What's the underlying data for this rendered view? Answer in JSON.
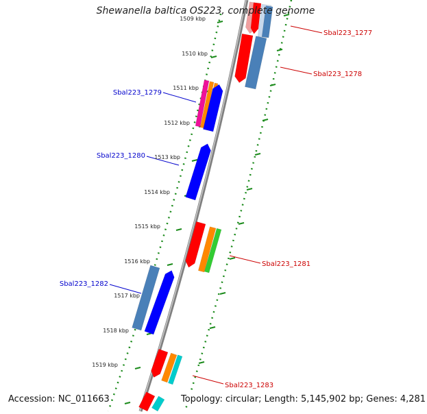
{
  "title": "Shewanella baltica OS223, complete genome",
  "footer": {
    "accession": "Accession: NC_011663",
    "topology": "Topology: circular; Length: 5,145,902 bp; Genes: 4,281"
  },
  "colors": {
    "backbone": "#808080",
    "tick_track": "#1a8a1a",
    "label_left": "#0000cc",
    "label_right": "#cc0000",
    "red": "#ff0000",
    "blue": "#0000ff",
    "steelblue": "#4a80b8",
    "orange": "#ff8800",
    "green": "#33cc33",
    "cyan": "#00cccc",
    "magenta": "#ee1199"
  },
  "kbp_labels": [
    "1509 kbp",
    "1510 kbp",
    "1511 kbp",
    "1512 kbp",
    "1513 kbp",
    "1514 kbp",
    "1515 kbp",
    "1516 kbp",
    "1517 kbp",
    "1518 kbp",
    "1519 kbp"
  ],
  "genes": [
    {
      "label": "Sbal223_1277",
      "side": "right"
    },
    {
      "label": "Sbal223_1278",
      "side": "right"
    },
    {
      "label": "Sbal223_1279",
      "side": "left"
    },
    {
      "label": "Sbal223_1280",
      "side": "left"
    },
    {
      "label": "Sbal223_1281",
      "side": "right"
    },
    {
      "label": "Sbal223_1282",
      "side": "left"
    },
    {
      "label": "Sbal223_1283",
      "side": "right"
    }
  ]
}
